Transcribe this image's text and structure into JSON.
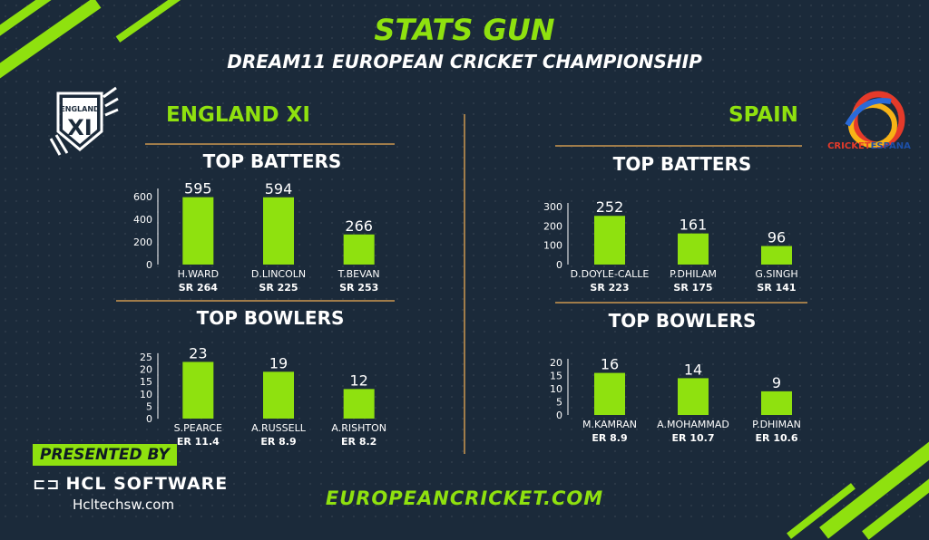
{
  "header": {
    "title": "STATS GUN",
    "subtitle": "DREAM11 EUROPEAN CRICKET CHAMPIONSHIP"
  },
  "teams": {
    "left": {
      "name": "ENGLAND XI",
      "logo_text": "ENGLAND XI"
    },
    "right": {
      "name": "SPAIN",
      "logo_text": "CRICKETESPANA"
    }
  },
  "sections": {
    "batters": "TOP BATTERS",
    "bowlers": "TOP BOWLERS"
  },
  "footer": {
    "presented_by": "PRESENTED BY",
    "sponsor": "HCL SOFTWARE",
    "sponsor_url": "Hcltechsw.com",
    "site": "EUROPEANCRICKET.COM"
  },
  "colors": {
    "accent": "#8fe10f",
    "background": "#1b2a3a",
    "rule": "#a07c4a"
  },
  "chart_data": [
    {
      "id": "england-batters",
      "type": "bar",
      "title": "TOP BATTERS",
      "categories": [
        "H.WARD",
        "D.LINCOLN",
        "T.BEVAN"
      ],
      "sublabels": [
        "SR 264",
        "SR 225",
        "SR 253"
      ],
      "values": [
        595,
        594,
        266
      ],
      "yticks": [
        0,
        200,
        400,
        600
      ],
      "ylim": [
        0,
        640
      ]
    },
    {
      "id": "england-bowlers",
      "type": "bar",
      "title": "TOP BOWLERS",
      "categories": [
        "S.PEARCE",
        "A.RUSSELL",
        "A.RISHTON"
      ],
      "sublabels": [
        "ER 11.4",
        "ER 8.9",
        "ER 8.2"
      ],
      "values": [
        23,
        19,
        12
      ],
      "yticks": [
        0,
        5,
        10,
        15,
        20,
        25
      ],
      "ylim": [
        0,
        25
      ]
    },
    {
      "id": "spain-batters",
      "type": "bar",
      "title": "TOP BATTERS",
      "categories": [
        "D.DOYLE-CALLE",
        "P.DHILAM",
        "G.SINGH"
      ],
      "sublabels": [
        "SR 223",
        "SR 175",
        "SR 141"
      ],
      "values": [
        252,
        161,
        96
      ],
      "yticks": [
        0,
        100,
        200,
        300
      ],
      "ylim": [
        0,
        300
      ]
    },
    {
      "id": "spain-bowlers",
      "type": "bar",
      "title": "TOP BOWLERS",
      "categories": [
        "M.KAMRAN",
        "A.MOHAMMAD",
        "P.DHIMAN"
      ],
      "sublabels": [
        "ER 8.9",
        "ER 10.7",
        "ER 10.6"
      ],
      "values": [
        16,
        14,
        9
      ],
      "yticks": [
        0,
        5,
        10,
        15,
        20
      ],
      "ylim": [
        0,
        20
      ]
    }
  ]
}
